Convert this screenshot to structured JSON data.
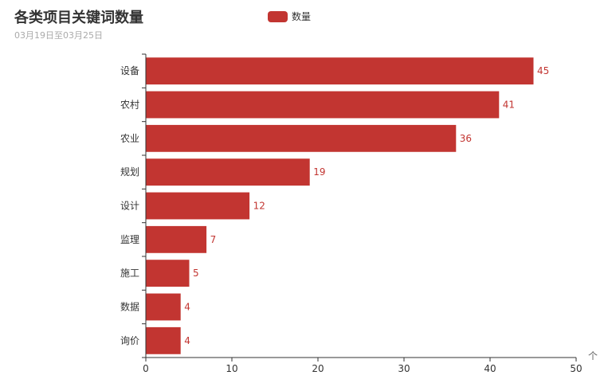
{
  "chart_data": {
    "type": "bar",
    "orientation": "horizontal",
    "title": "各类项目关键词数量",
    "subtitle": "03月19日至03月25日",
    "categories": [
      "设备",
      "农村",
      "农业",
      "规划",
      "设计",
      "监理",
      "施工",
      "数据",
      "询价"
    ],
    "series": [
      {
        "name": "数量",
        "values": [
          45,
          41,
          36,
          19,
          12,
          7,
          5,
          4,
          4
        ]
      }
    ],
    "xlim": [
      0,
      50
    ],
    "xticks": [
      "0",
      "10",
      "20",
      "30",
      "40",
      "50"
    ],
    "grid": false,
    "legend_position": "top-center",
    "color": "#c23531",
    "axis_end_mark": "个"
  }
}
